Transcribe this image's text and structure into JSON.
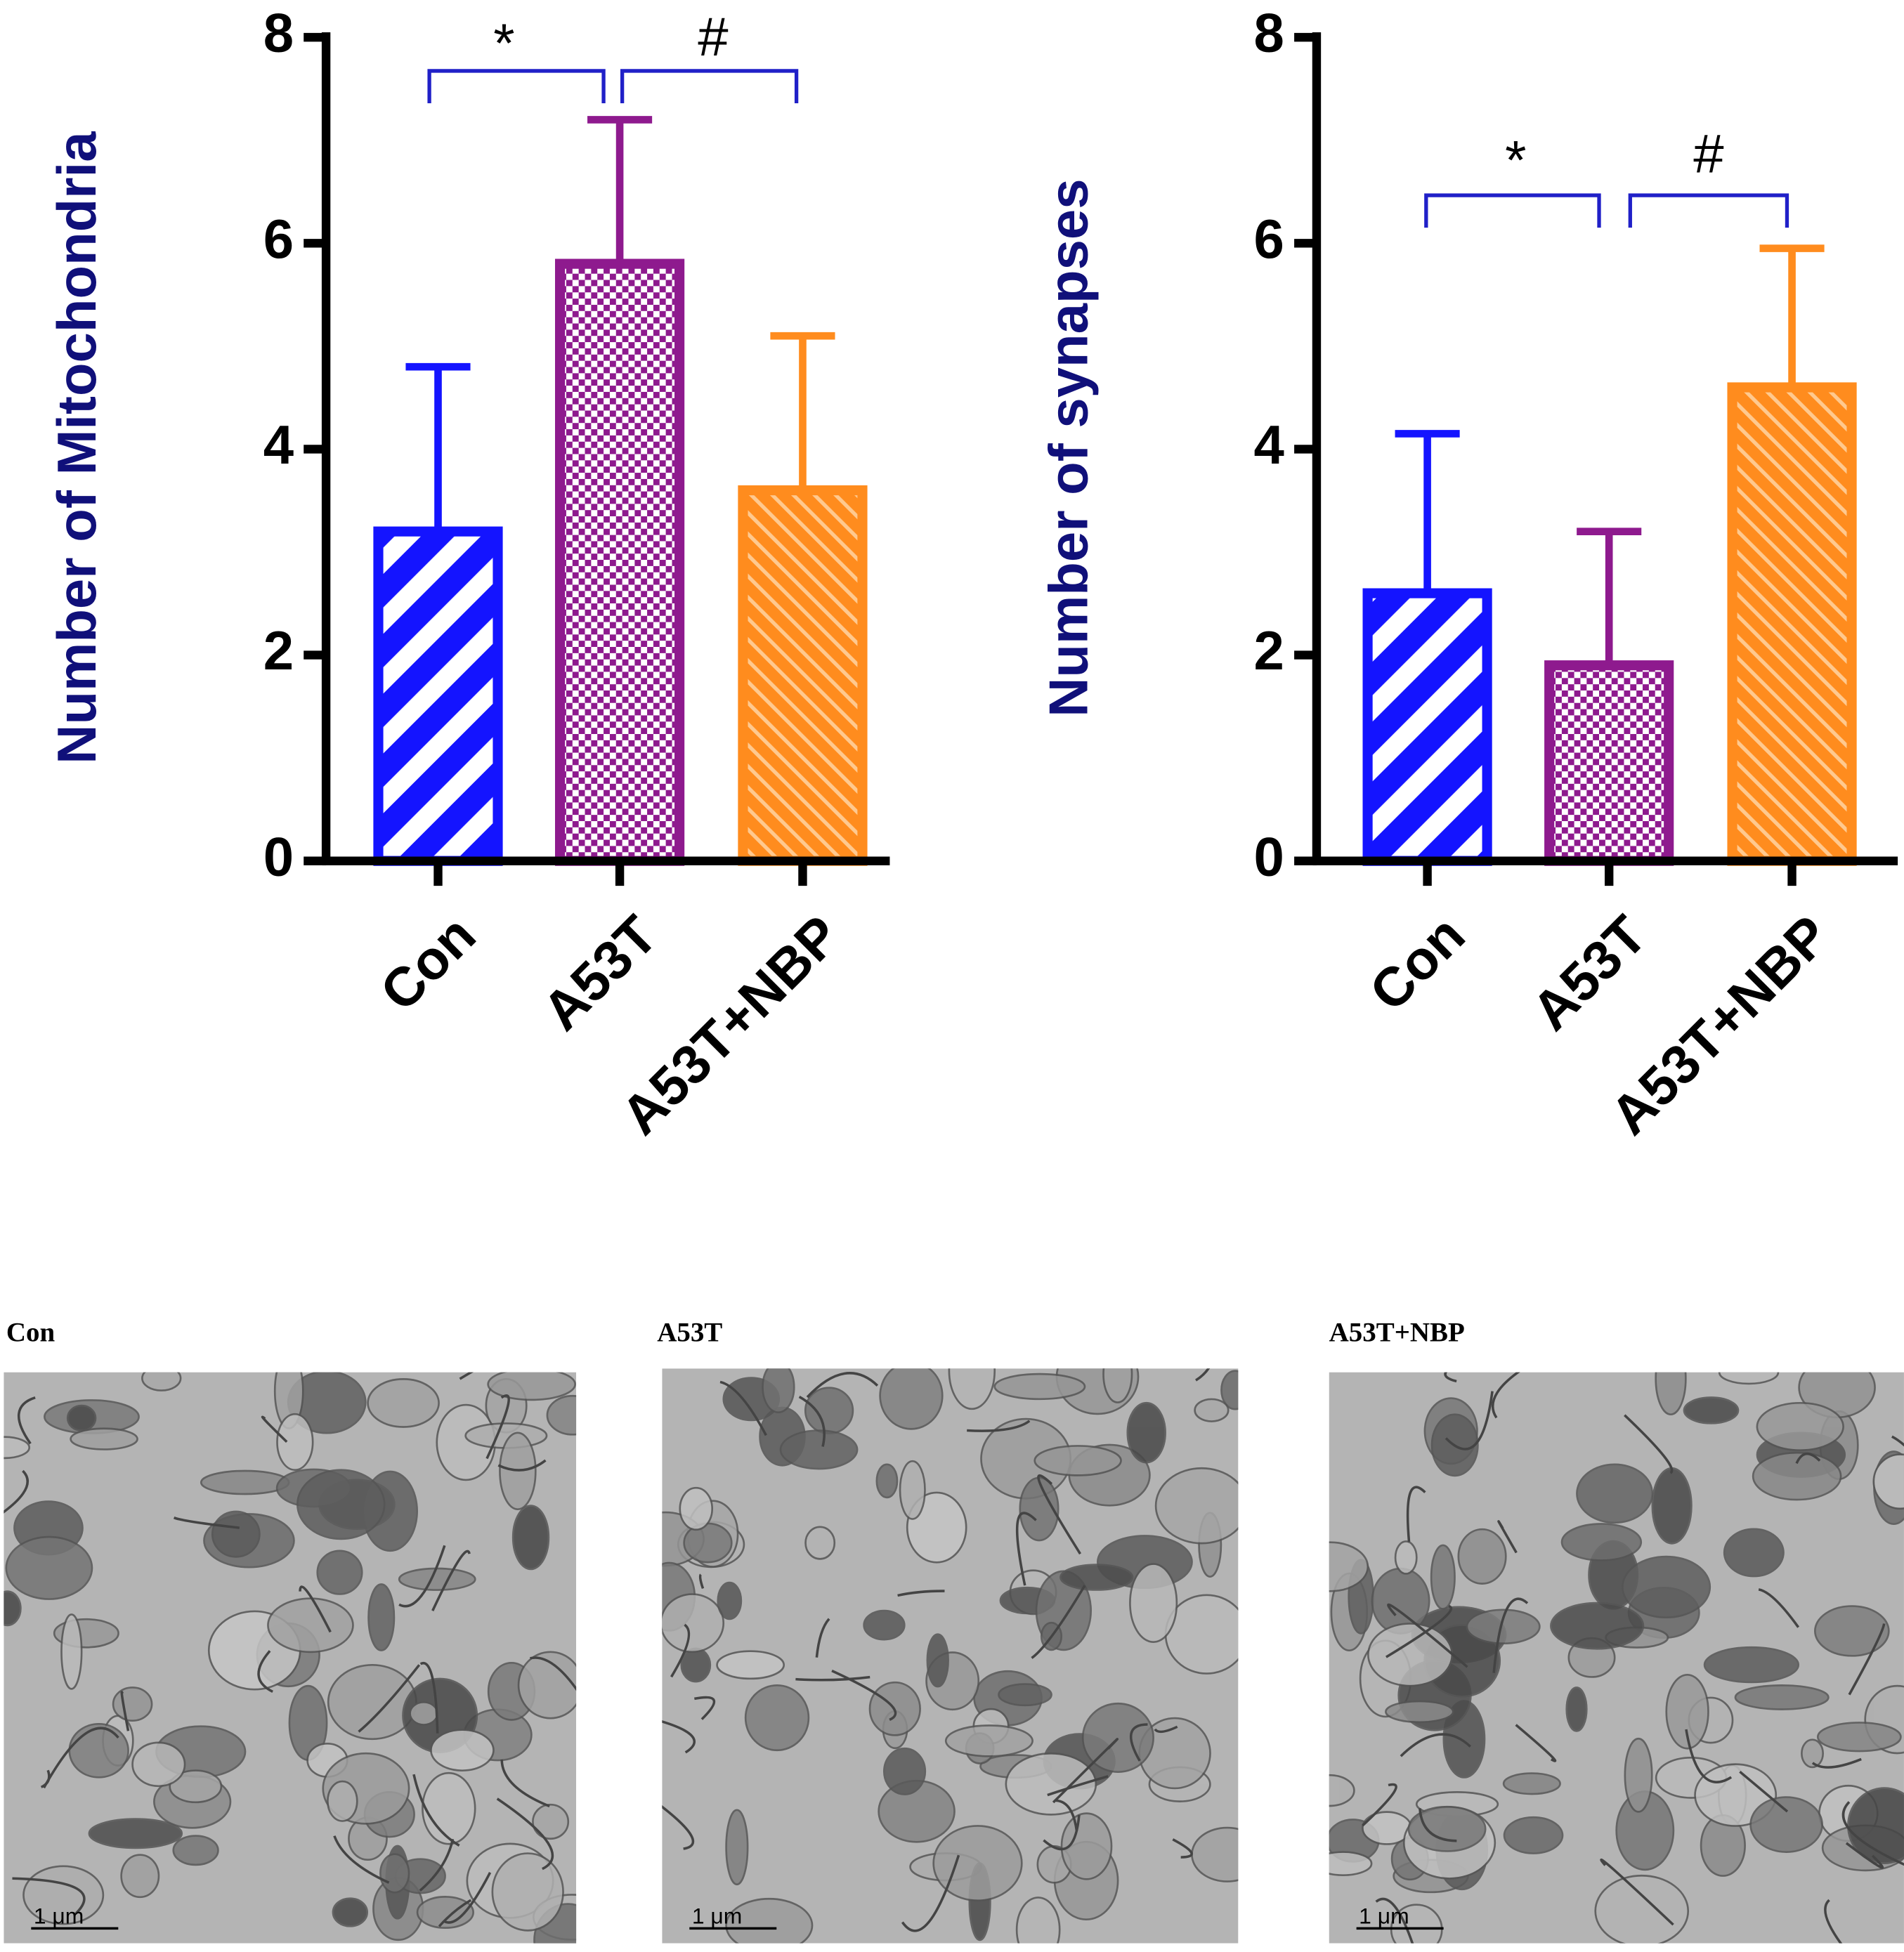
{
  "chart_data": [
    {
      "type": "bar",
      "y_label": "Number of Mitochondria",
      "categories": [
        "Con",
        "A53T",
        "A53T+NBP"
      ],
      "values": [
        3.2,
        5.8,
        3.6
      ],
      "errors": [
        1.6,
        1.4,
        1.5
      ],
      "colors": [
        "#1414ff",
        "#8e1a8e",
        "#ff8c1e"
      ],
      "ylim": [
        0,
        8
      ],
      "yticks": [
        0,
        2,
        4,
        6,
        8
      ],
      "annotations": [
        "*",
        "#"
      ],
      "annotation_color": "#2020c8"
    },
    {
      "type": "bar",
      "y_label": "Number of synapses",
      "categories": [
        "Con",
        "A53T",
        "A53T+NBP"
      ],
      "values": [
        2.6,
        1.9,
        4.6
      ],
      "errors": [
        1.55,
        1.3,
        1.35
      ],
      "colors": [
        "#1414ff",
        "#8e1a8e",
        "#ff8c1e"
      ],
      "ylim": [
        0,
        8
      ],
      "yticks": [
        0,
        2,
        4,
        6,
        8
      ],
      "annotations": [
        "*",
        "#"
      ],
      "annotation_color": "#2020c8"
    }
  ],
  "images": [
    {
      "label": "Con",
      "scale_bar": "1 μm"
    },
    {
      "label": "A53T",
      "scale_bar": "1 μm"
    },
    {
      "label": "A53T+NBP",
      "scale_bar": "1 μm"
    }
  ]
}
